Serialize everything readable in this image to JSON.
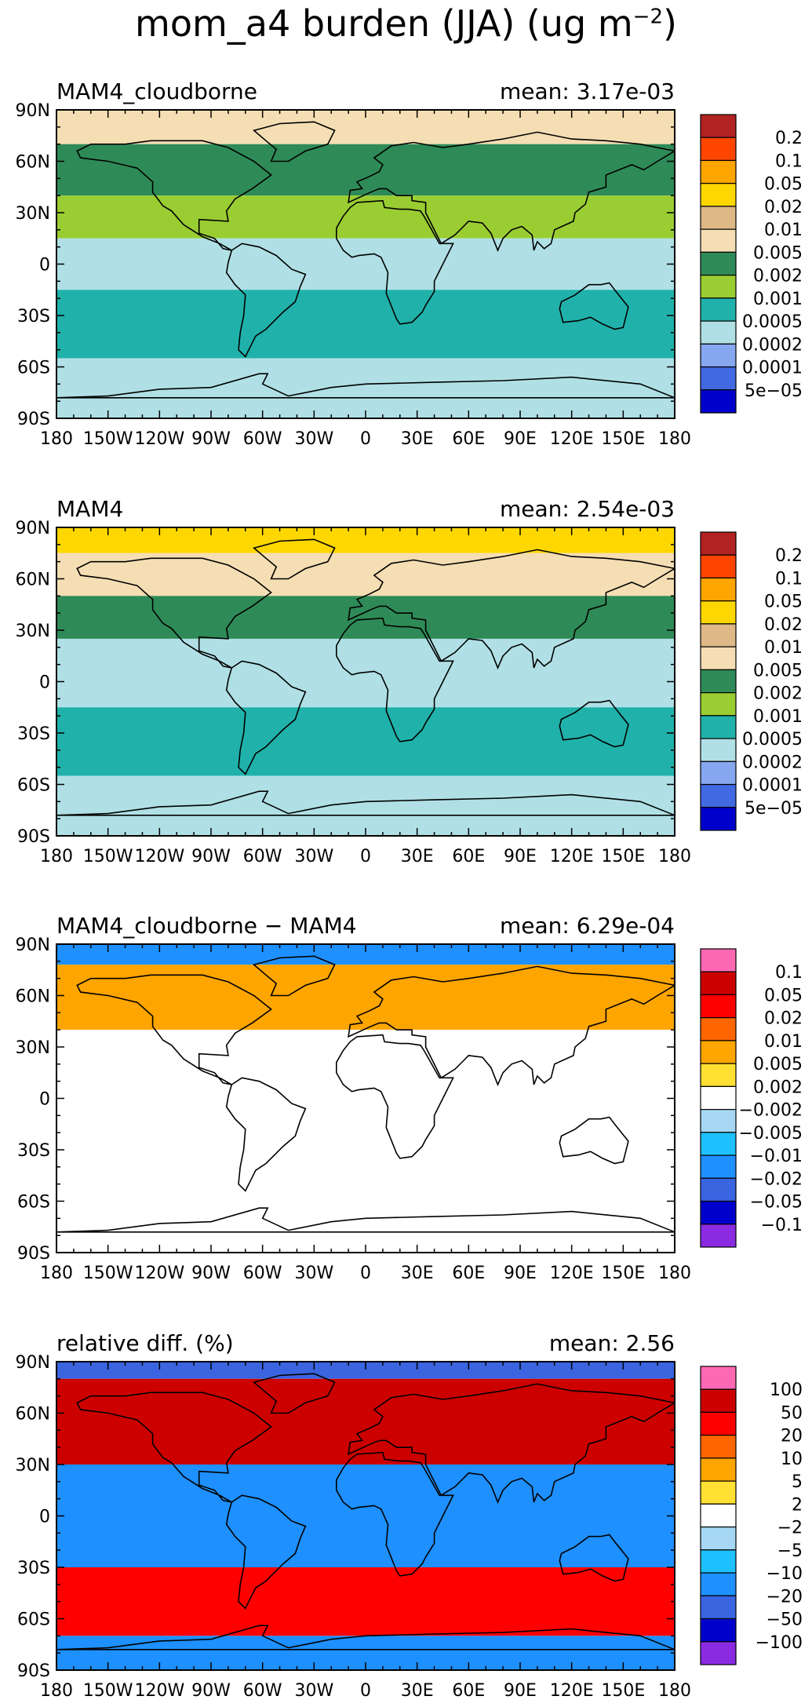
{
  "title": {
    "prefix": "mom_a4 burden (JJA) (ug m",
    "exponent": "−2",
    "suffix": ")"
  },
  "chart_data": [
    {
      "type": "heatmap",
      "title": "MAM4_cloudborne",
      "stat_label": "mean:",
      "stat_value": "3.17e-03",
      "x_ticks": [
        "180",
        "150W",
        "120W",
        "90W",
        "60W",
        "30W",
        "0",
        "30E",
        "60E",
        "90E",
        "120E",
        "150E",
        "180"
      ],
      "y_ticks": [
        "90N",
        "60N",
        "30N",
        "0",
        "30S",
        "60S",
        "90S"
      ],
      "xlim": [
        -180,
        180
      ],
      "ylim": [
        -90,
        90
      ],
      "legend_position": "right",
      "colorbar": {
        "labels": [
          "0.2",
          "0.1",
          "0.05",
          "0.02",
          "0.01",
          "0.005",
          "0.002",
          "0.001",
          "0.0005",
          "0.0002",
          "0.0001",
          "5e−05"
        ],
        "colors": [
          "#b22222",
          "#ff4500",
          "#ffa500",
          "#ffd700",
          "#deb887",
          "#f5deb3",
          "#2e8b57",
          "#9acd32",
          "#20b2aa",
          "#b0e0e6",
          "#87a8f0",
          "#4169e1",
          "#0000cd"
        ]
      },
      "bands": [
        {
          "lat": [
            70,
            90
          ],
          "value": 0.005
        },
        {
          "lat": [
            40,
            70
          ],
          "value": 0.002
        },
        {
          "lat": [
            15,
            40
          ],
          "value": 0.001
        },
        {
          "lat": [
            -15,
            15
          ],
          "value": 0.0002
        },
        {
          "lat": [
            -55,
            -15
          ],
          "value": 0.0005
        },
        {
          "lat": [
            -90,
            -55
          ],
          "value": 0.0002
        }
      ]
    },
    {
      "type": "heatmap",
      "title": "MAM4",
      "stat_label": "mean:",
      "stat_value": "2.54e-03",
      "x_ticks": [
        "180",
        "150W",
        "120W",
        "90W",
        "60W",
        "30W",
        "0",
        "30E",
        "60E",
        "90E",
        "120E",
        "150E",
        "180"
      ],
      "y_ticks": [
        "90N",
        "60N",
        "30N",
        "0",
        "30S",
        "60S",
        "90S"
      ],
      "xlim": [
        -180,
        180
      ],
      "ylim": [
        -90,
        90
      ],
      "legend_position": "right",
      "colorbar": {
        "labels": [
          "0.2",
          "0.1",
          "0.05",
          "0.02",
          "0.01",
          "0.005",
          "0.002",
          "0.001",
          "0.0005",
          "0.0002",
          "0.0001",
          "5e−05"
        ],
        "colors": [
          "#b22222",
          "#ff4500",
          "#ffa500",
          "#ffd700",
          "#deb887",
          "#f5deb3",
          "#2e8b57",
          "#9acd32",
          "#20b2aa",
          "#b0e0e6",
          "#87a8f0",
          "#4169e1",
          "#0000cd"
        ]
      },
      "bands": [
        {
          "lat": [
            75,
            90
          ],
          "value": 0.02
        },
        {
          "lat": [
            50,
            75
          ],
          "value": 0.005
        },
        {
          "lat": [
            25,
            50
          ],
          "value": 0.002
        },
        {
          "lat": [
            -15,
            25
          ],
          "value": 0.0002
        },
        {
          "lat": [
            -55,
            -15
          ],
          "value": 0.0005
        },
        {
          "lat": [
            -90,
            -55
          ],
          "value": 0.0002
        }
      ]
    },
    {
      "type": "heatmap",
      "title": "MAM4_cloudborne − MAM4",
      "stat_label": "mean:",
      "stat_value": "6.29e-04",
      "x_ticks": [
        "180",
        "150W",
        "120W",
        "90W",
        "60W",
        "30W",
        "0",
        "30E",
        "60E",
        "90E",
        "120E",
        "150E",
        "180"
      ],
      "y_ticks": [
        "90N",
        "60N",
        "30N",
        "0",
        "30S",
        "60S",
        "90S"
      ],
      "xlim": [
        -180,
        180
      ],
      "ylim": [
        -90,
        90
      ],
      "legend_position": "right",
      "colorbar": {
        "labels": [
          "0.1",
          "0.05",
          "0.02",
          "0.01",
          "0.005",
          "0.002",
          "−0.002",
          "−0.005",
          "−0.01",
          "−0.02",
          "−0.05",
          "−0.1"
        ],
        "colors": [
          "#ff69b4",
          "#cd0000",
          "#ff0000",
          "#ff6600",
          "#ffa500",
          "#ffe033",
          "#ffffff",
          "#a6d8f5",
          "#1ec1ff",
          "#1e90ff",
          "#3a64e0",
          "#0000cd",
          "#8a2be2"
        ]
      },
      "bands": [
        {
          "lat": [
            78,
            90
          ],
          "value": -0.02
        },
        {
          "lat": [
            40,
            78
          ],
          "value": 0.005
        },
        {
          "lat": [
            -90,
            40
          ],
          "value": 0
        }
      ]
    },
    {
      "type": "heatmap",
      "title": "relative diff. (%)",
      "stat_label": "mean:",
      "stat_value": "2.56",
      "x_ticks": [
        "180",
        "150W",
        "120W",
        "90W",
        "60W",
        "30W",
        "0",
        "30E",
        "60E",
        "90E",
        "120E",
        "150E",
        "180"
      ],
      "y_ticks": [
        "90N",
        "60N",
        "30N",
        "0",
        "30S",
        "60S",
        "90S"
      ],
      "xlim": [
        -180,
        180
      ],
      "ylim": [
        -90,
        90
      ],
      "legend_position": "right",
      "colorbar": {
        "labels": [
          "100",
          "50",
          "20",
          "10",
          "5",
          "2",
          "−2",
          "−5",
          "−10",
          "−20",
          "−50",
          "−100"
        ],
        "colors": [
          "#ff69b4",
          "#cd0000",
          "#ff0000",
          "#ff6600",
          "#ffa500",
          "#ffe033",
          "#ffffff",
          "#a6d8f5",
          "#1ec1ff",
          "#1e90ff",
          "#3a64e0",
          "#0000cd",
          "#8a2be2"
        ]
      },
      "bands": [
        {
          "lat": [
            80,
            90
          ],
          "value": -50
        },
        {
          "lat": [
            30,
            80
          ],
          "value": 50
        },
        {
          "lat": [
            -30,
            30
          ],
          "value": -20
        },
        {
          "lat": [
            -70,
            -30
          ],
          "value": 20
        },
        {
          "lat": [
            -90,
            -70
          ],
          "value": -20
        }
      ]
    }
  ]
}
